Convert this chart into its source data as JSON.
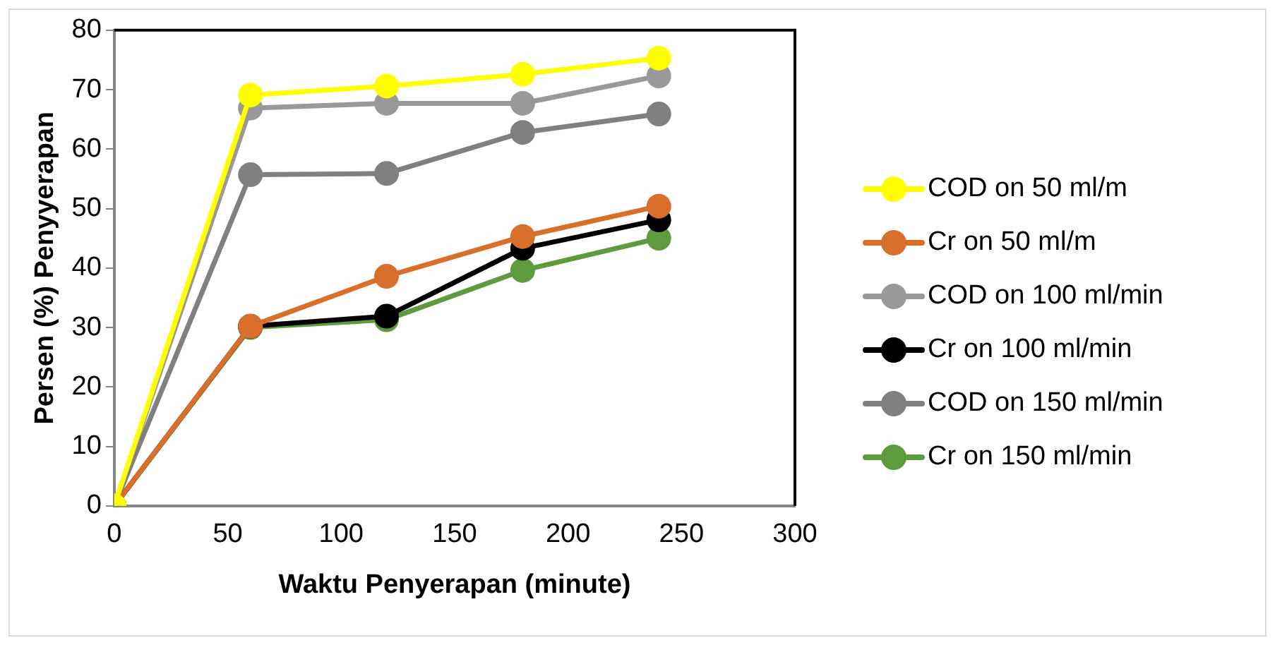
{
  "chart_data": {
    "type": "line",
    "xlabel": "Waktu Penyerapan (minute)",
    "ylabel": "Persen (%) Penyyerapan",
    "x": [
      0,
      60,
      120,
      180,
      240
    ],
    "series": [
      {
        "name": "COD on 50 ml/m",
        "color": "#ffff00",
        "values": [
          0,
          69.1,
          70.6,
          72.6,
          75.3
        ]
      },
      {
        "name": "Cr on 50 ml/m",
        "color": "#d86f2b",
        "values": [
          0,
          30.2,
          38.6,
          45.3,
          50.4
        ]
      },
      {
        "name": "COD on 100 ml/min",
        "color": "#999999",
        "values": [
          0,
          66.9,
          67.7,
          67.7,
          72.3
        ]
      },
      {
        "name": "Cr on 100 ml/min",
        "color": "#000000",
        "values": [
          0,
          30.2,
          31.9,
          43.3,
          48.1
        ]
      },
      {
        "name": "COD on 150 ml/min",
        "color": "#808080",
        "values": [
          0,
          55.7,
          55.9,
          62.8,
          65.9
        ]
      },
      {
        "name": "Cr on 150 ml/min",
        "color": "#5e9b3e",
        "values": [
          0,
          30.0,
          31.3,
          39.6,
          45.0
        ]
      }
    ],
    "xlim": [
      0,
      300
    ],
    "xticks": [
      0,
      50,
      100,
      150,
      200,
      250,
      300
    ],
    "ylim": [
      0,
      80
    ],
    "yticks": [
      0,
      10,
      20,
      30,
      40,
      50,
      60,
      70,
      80
    ],
    "grid": false,
    "legend": "right",
    "marker": "circle",
    "line_style": "solid"
  }
}
